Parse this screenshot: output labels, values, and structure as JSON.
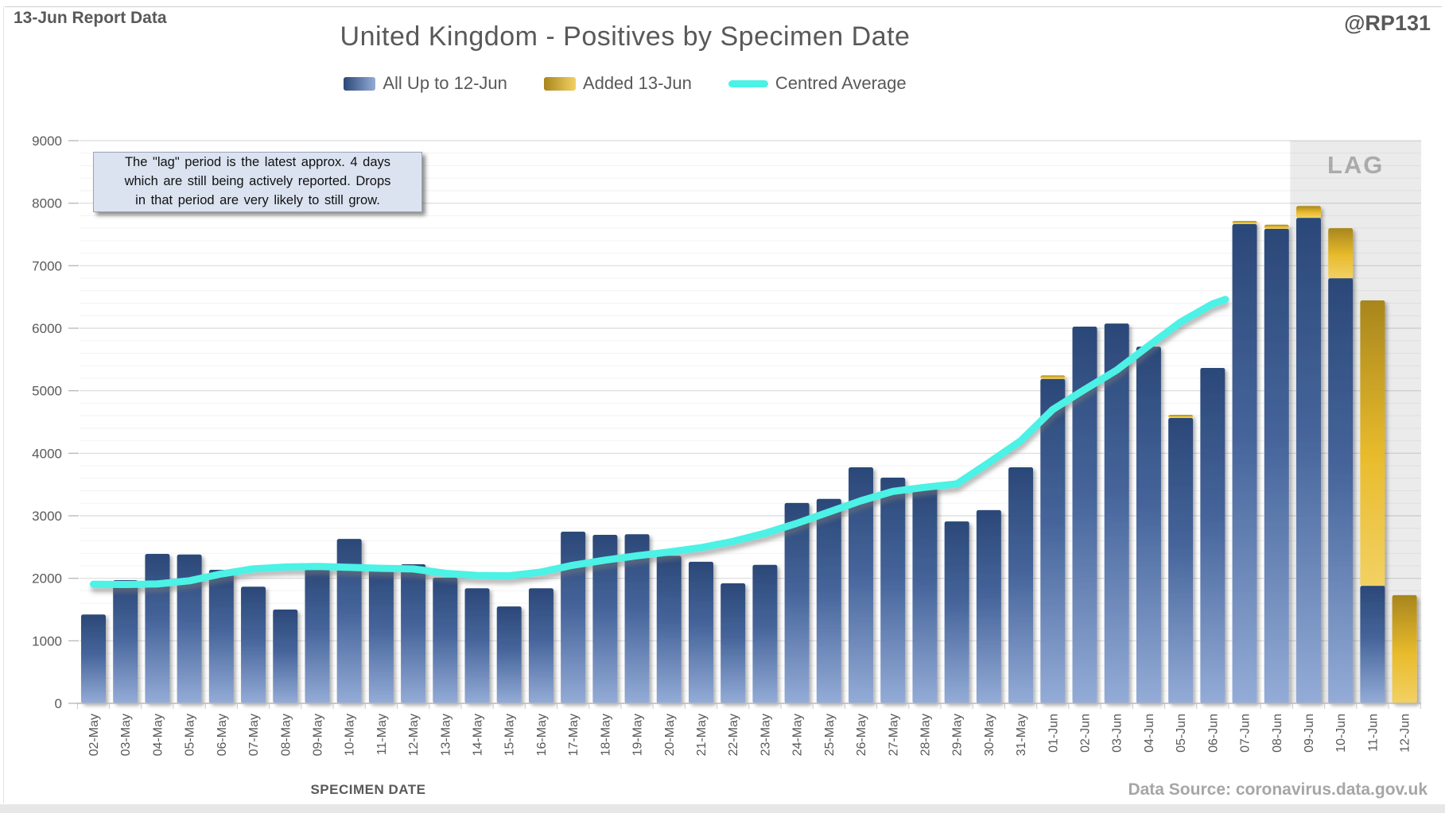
{
  "header": {
    "report_label": "13-Jun Report Data",
    "handle": "@RP131",
    "title": "United Kingdom - Positives by Specimen Date"
  },
  "legend": {
    "all_label": "All Up to 12-Jun",
    "added_label": "Added 13-Jun",
    "avg_label": "Centred Average"
  },
  "callout": {
    "lines": [
      "The \"lag\" period is the latest approx. 4 days",
      "which are still being actively reported. Drops",
      "in that period are very likely to still grow."
    ]
  },
  "lag": {
    "label": "LAG"
  },
  "axis": {
    "x_title": "SPECIMEN DATE"
  },
  "footer": {
    "data_source": "Data Source: coronavirus.data.gov.uk"
  },
  "colors": {
    "text_gray": "#595959",
    "light_gray_text": "#a6a6a6",
    "lag_text": "#ababab",
    "lag_band": "#ebebeb",
    "blue_dark": "#2b4878",
    "blue_mid": "#46659b",
    "blue_light": "#94acd7",
    "gold_dark": "#a8861d",
    "gold_mid": "#e9bc2d",
    "gold_light": "#f2d164",
    "cyan": "#4bf2e5",
    "baseline": "#b7b7b7"
  },
  "chart_data": {
    "type": "bar",
    "title": "United Kingdom - Positives by Specimen Date",
    "xlabel": "SPECIMEN DATE",
    "ylabel": "",
    "ylim": [
      0,
      9000
    ],
    "y_step": 1000,
    "y_minor_step": 200,
    "grid": true,
    "legend_position": "top",
    "categories": [
      "02-May",
      "03-May",
      "04-May",
      "05-May",
      "06-May",
      "07-May",
      "08-May",
      "09-May",
      "10-May",
      "11-May",
      "12-May",
      "13-May",
      "14-May",
      "15-May",
      "16-May",
      "17-May",
      "18-May",
      "19-May",
      "20-May",
      "21-May",
      "22-May",
      "23-May",
      "24-May",
      "25-May",
      "26-May",
      "27-May",
      "28-May",
      "29-May",
      "30-May",
      "31-May",
      "01-Jun",
      "02-Jun",
      "03-Jun",
      "04-Jun",
      "05-Jun",
      "06-Jun",
      "07-Jun",
      "08-Jun",
      "09-Jun",
      "10-Jun",
      "11-Jun",
      "12-Jun"
    ],
    "series": [
      {
        "name": "All Up to 12-Jun",
        "type": "bar",
        "values": [
          1420,
          1970,
          2390,
          2380,
          2135,
          1865,
          1500,
          2150,
          2630,
          2180,
          2225,
          2010,
          1840,
          1550,
          1840,
          2745,
          2695,
          2705,
          2360,
          2265,
          1920,
          2215,
          3205,
          3270,
          3775,
          3610,
          3470,
          2910,
          3090,
          3775,
          5190,
          6025,
          6075,
          5705,
          4565,
          5365,
          7665,
          7590,
          7765,
          6800,
          1880,
          0
        ]
      },
      {
        "name": "Added 13-Jun",
        "type": "bar-stacked",
        "values": [
          0,
          0,
          0,
          0,
          0,
          0,
          0,
          0,
          0,
          0,
          0,
          0,
          0,
          0,
          0,
          0,
          0,
          0,
          0,
          0,
          0,
          0,
          0,
          0,
          0,
          0,
          0,
          0,
          0,
          0,
          55,
          0,
          0,
          0,
          50,
          0,
          50,
          65,
          190,
          800,
          4565,
          1730
        ]
      },
      {
        "name": "Centred Average",
        "type": "line",
        "values": [
          1905,
          1900,
          1910,
          1960,
          2070,
          2150,
          2180,
          2190,
          2175,
          2160,
          2150,
          2080,
          2045,
          2040,
          2100,
          2210,
          2290,
          2360,
          2420,
          2490,
          2590,
          2720,
          2880,
          3060,
          3240,
          3390,
          3455,
          3510,
          3850,
          4200,
          4700,
          5020,
          5330,
          5720,
          6100,
          6390,
          null,
          null,
          null,
          null,
          null,
          null
        ],
        "tip_value": 6460
      }
    ],
    "lag_region": {
      "categories": [
        "09-Jun",
        "10-Jun",
        "11-Jun",
        "12-Jun"
      ],
      "label": "LAG"
    }
  }
}
